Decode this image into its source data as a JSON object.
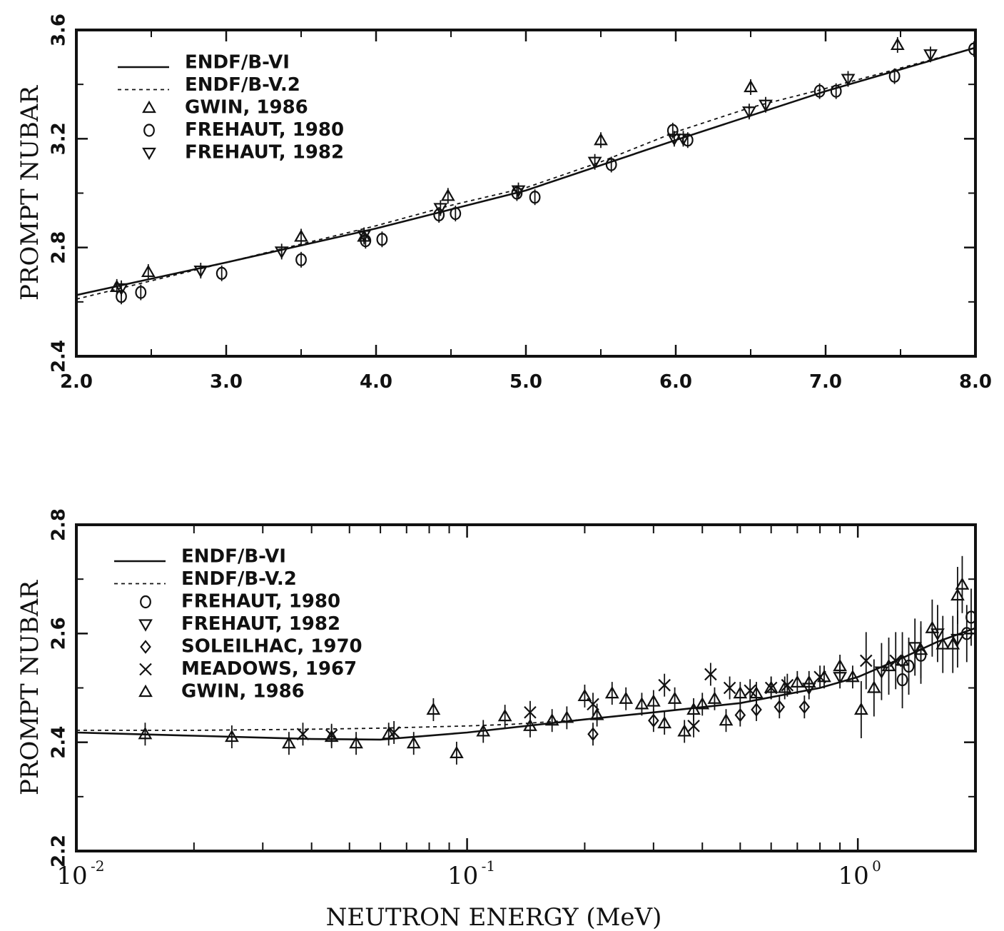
{
  "chart_data": [
    {
      "type": "scatter",
      "xscale": "linear",
      "xlim": [
        2.0,
        8.0
      ],
      "ylim": [
        2.4,
        3.6
      ],
      "xticks": [
        "2.0",
        "3.0",
        "4.0",
        "5.0",
        "6.0",
        "7.0",
        "8.0"
      ],
      "yticks": [
        "2.4",
        "2.8",
        "3.2",
        "3.6"
      ],
      "xlabel": "",
      "ylabel": "PROMPT NUBAR",
      "grid": false,
      "legend_position": "top-left",
      "lines": [
        {
          "name": "ENDF/B-VI",
          "style": "solid",
          "x": [
            2.0,
            3.0,
            4.0,
            5.0,
            6.0,
            7.0,
            8.0
          ],
          "y": [
            2.625,
            2.745,
            2.87,
            3.01,
            3.195,
            3.375,
            3.535
          ]
        },
        {
          "name": "ENDF/B-V.2",
          "style": "dashed",
          "x": [
            2.0,
            3.0,
            4.0,
            4.5,
            5.0,
            5.5,
            6.0,
            6.5,
            7.0,
            7.5,
            8.0
          ],
          "y": [
            2.61,
            2.745,
            2.88,
            2.955,
            3.02,
            3.115,
            3.225,
            3.315,
            3.385,
            3.46,
            3.535
          ]
        }
      ],
      "series": [
        {
          "name": "GWIN, 1986",
          "marker": "triangle-up",
          "x": [
            2.27,
            2.48,
            3.5,
            3.92,
            4.48,
            5.5,
            6.5,
            7.48
          ],
          "y": [
            2.655,
            2.71,
            2.84,
            2.84,
            2.99,
            3.195,
            3.39,
            3.545
          ]
        },
        {
          "name": "FREHAUT, 1980",
          "marker": "circle",
          "x": [
            2.3,
            2.43,
            2.97,
            3.5,
            3.93,
            4.04,
            4.42,
            4.53,
            4.94,
            5.06,
            5.57,
            5.98,
            6.08,
            6.96,
            7.07,
            7.46,
            7.99
          ],
          "y": [
            2.62,
            2.635,
            2.705,
            2.755,
            2.825,
            2.83,
            2.92,
            2.925,
            3.0,
            2.985,
            3.105,
            3.23,
            3.195,
            3.375,
            3.375,
            3.43,
            3.53
          ]
        },
        {
          "name": "FREHAUT, 1982",
          "marker": "triangle-down",
          "x": [
            2.3,
            2.83,
            3.37,
            3.92,
            4.43,
            4.95,
            5.46,
            5.99,
            6.05,
            6.49,
            6.6,
            7.15,
            7.7
          ],
          "y": [
            2.65,
            2.715,
            2.785,
            2.845,
            2.945,
            3.01,
            3.115,
            3.2,
            3.2,
            3.3,
            3.325,
            3.42,
            3.51
          ]
        }
      ]
    },
    {
      "type": "scatter",
      "xscale": "log",
      "xlim": [
        0.01,
        2.0
      ],
      "ylim": [
        2.2,
        2.8
      ],
      "xtick_labels": [
        {
          "base": "10",
          "exp": "-2"
        },
        {
          "base": "10",
          "exp": "-1"
        },
        {
          "base": "10",
          "exp": "0"
        }
      ],
      "yticks": [
        "2.2",
        "2.4",
        "2.6",
        "2.8"
      ],
      "xlabel": "NEUTRON ENERGY (MeV)",
      "ylabel": "PROMPT NUBAR",
      "grid": false,
      "legend_position": "top-left",
      "lines": [
        {
          "name": "ENDF/B-VI",
          "style": "solid",
          "x": [
            0.01,
            0.02,
            0.04,
            0.06,
            0.1,
            0.2,
            0.3,
            0.5,
            0.8,
            1.0,
            1.3,
            1.6,
            2.0
          ],
          "y": [
            2.418,
            2.412,
            2.406,
            2.405,
            2.418,
            2.442,
            2.455,
            2.472,
            2.5,
            2.52,
            2.555,
            2.585,
            2.61
          ]
        },
        {
          "name": "ENDF/B-V.2",
          "style": "dashed",
          "x": [
            0.01,
            0.02,
            0.04,
            0.06,
            0.1,
            0.13,
            0.2,
            0.3,
            0.5,
            0.8,
            1.0,
            1.3,
            1.6,
            2.0
          ],
          "y": [
            2.422,
            2.422,
            2.424,
            2.426,
            2.43,
            2.433,
            2.442,
            2.455,
            2.472,
            2.5,
            2.52,
            2.555,
            2.585,
            2.61
          ]
        }
      ],
      "series": [
        {
          "name": "FREHAUT, 1980",
          "marker": "circle",
          "x": [
            1.3,
            1.35,
            1.45,
            1.9,
            1.95
          ],
          "y": [
            2.515,
            2.54,
            2.56,
            2.6,
            2.63
          ]
        },
        {
          "name": "FREHAUT, 1982",
          "marker": "triangle-down",
          "x": [
            0.75,
            0.9,
            1.15,
            1.4,
            1.6,
            1.8
          ],
          "y": [
            2.5,
            2.52,
            2.53,
            2.575,
            2.6,
            2.59
          ]
        },
        {
          "name": "SOLEILHAC, 1970",
          "marker": "diamond",
          "x": [
            0.21,
            0.3,
            0.5,
            0.55,
            0.63,
            0.73
          ],
          "y": [
            2.415,
            2.44,
            2.45,
            2.46,
            2.465,
            2.465
          ]
        },
        {
          "name": "MEADOWS, 1967",
          "marker": "x",
          "x": [
            0.038,
            0.045,
            0.065,
            0.145,
            0.21,
            0.32,
            0.38,
            0.42,
            0.47,
            0.53,
            0.6,
            0.66,
            0.8,
            1.05,
            1.25
          ],
          "y": [
            2.415,
            2.413,
            2.418,
            2.455,
            2.47,
            2.505,
            2.43,
            2.525,
            2.5,
            2.495,
            2.5,
            2.505,
            2.52,
            2.55,
            2.55
          ]
        },
        {
          "name": "GWIN, 1986",
          "marker": "triangle-up",
          "x": [
            0.015,
            0.025,
            0.035,
            0.045,
            0.052,
            0.063,
            0.073,
            0.082,
            0.094,
            0.11,
            0.125,
            0.145,
            0.165,
            0.18,
            0.2,
            0.215,
            0.235,
            0.255,
            0.28,
            0.3,
            0.32,
            0.34,
            0.36,
            0.38,
            0.4,
            0.43,
            0.46,
            0.5,
            0.55,
            0.6,
            0.65,
            0.7,
            0.75,
            0.82,
            0.9,
            0.97,
            1.02,
            1.1,
            1.2,
            1.3,
            1.45,
            1.55,
            1.65,
            1.75,
            1.8,
            1.85
          ],
          "y": [
            2.415,
            2.41,
            2.398,
            2.41,
            2.398,
            2.415,
            2.398,
            2.46,
            2.38,
            2.42,
            2.448,
            2.43,
            2.44,
            2.445,
            2.485,
            2.45,
            2.49,
            2.48,
            2.47,
            2.475,
            2.435,
            2.48,
            2.42,
            2.46,
            2.47,
            2.48,
            2.44,
            2.49,
            2.49,
            2.5,
            2.5,
            2.51,
            2.51,
            2.52,
            2.54,
            2.52,
            2.46,
            2.5,
            2.54,
            2.55,
            2.57,
            2.61,
            2.58,
            2.58,
            2.67,
            2.69
          ]
        }
      ]
    }
  ]
}
